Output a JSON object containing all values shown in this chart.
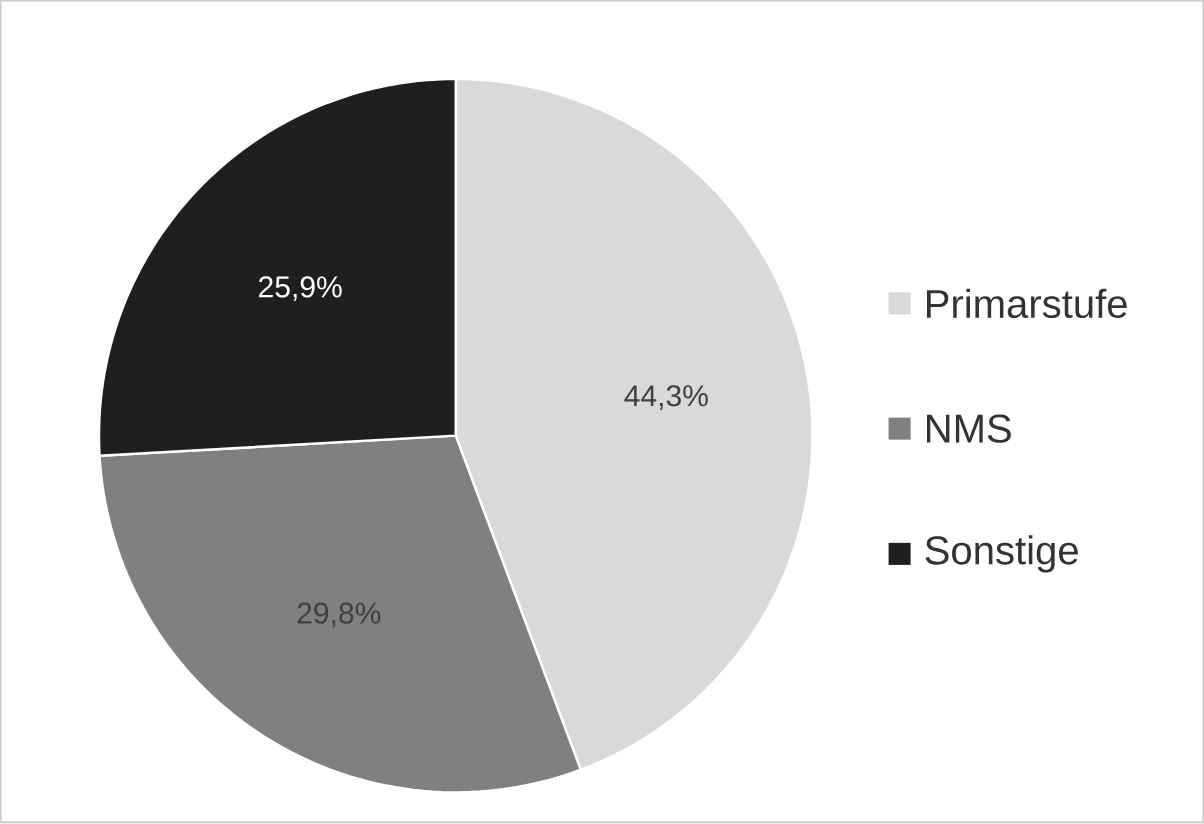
{
  "chart_data": {
    "type": "pie",
    "categories": [
      "Primarstufe",
      "NMS",
      "Sonstige"
    ],
    "values": [
      44.3,
      29.8,
      25.9
    ],
    "colors": [
      "#d9d9d9",
      "#808080",
      "#1f1f1f"
    ],
    "value_labels": [
      "44,3%",
      "29,8%",
      "25,9%"
    ],
    "legend": "right"
  }
}
